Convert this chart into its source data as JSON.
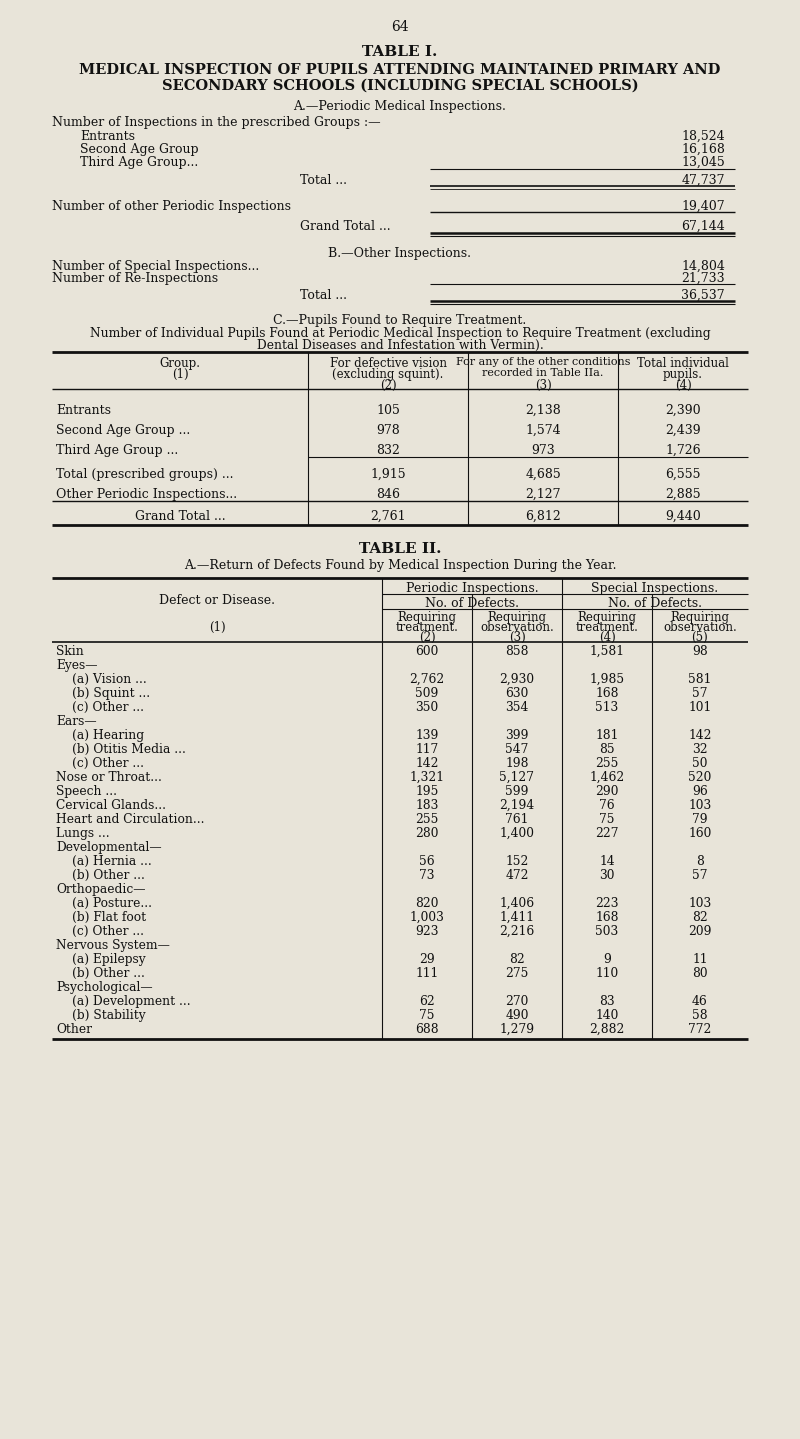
{
  "page_number": "64",
  "bg_color": "#e8e4d9",
  "text_color": "#1a1a1a",
  "table1_title": "TABLE I.",
  "table1_subtitle1": "MEDICAL INSPECTION OF PUPILS ATTENDING MAINTAINED PRIMARY AND",
  "table1_subtitle2": "SECONDARY SCHOOLS (INCLUDING SPECIAL SCHOOLS)",
  "section_A_header": "A.—Periodic Medical Inspections.",
  "section_A_text": "Number of Inspections in the prescribed Groups :—",
  "section_A_rows": [
    [
      "Entrants",
      "18,524"
    ],
    [
      "Second Age Group",
      "16,168"
    ],
    [
      "Third Age Group...",
      "13,045"
    ]
  ],
  "section_A_total": [
    "Total ...",
    "47,737"
  ],
  "section_A_other": [
    "Number of other Periodic Inspections",
    "19,407"
  ],
  "section_A_grand": [
    "Grand Total ...",
    "67,144"
  ],
  "section_B_header": "B.—Other Inspections.",
  "section_B_rows": [
    [
      "Number of Special Inspections...",
      "14,804"
    ],
    [
      "Number of Re-Inspections",
      "21,733"
    ]
  ],
  "section_B_total": [
    "Total ...",
    "36,537"
  ],
  "section_C_header": "C.—Pupils Found to Require Treatment.",
  "section_C_subheader1": "Number of Individual Pupils Found at Periodic Medical Inspection to Require Treatment (excluding",
  "section_C_subheader2": "Dental Diseases and Infestation with Vermin).",
  "table_c_rows": [
    [
      "Entrants",
      "105",
      "2,138",
      "2,390"
    ],
    [
      "Second Age Group ...",
      "978",
      "1,574",
      "2,439"
    ],
    [
      "Third Age Group ...",
      "832",
      "973",
      "1,726"
    ],
    [
      "Total (prescribed groups) ...",
      "1,915",
      "4,685",
      "6,555"
    ],
    [
      "Other Periodic Inspections...",
      "846",
      "2,127",
      "2,885"
    ],
    [
      "Grand Total ...",
      "2,761",
      "6,812",
      "9,440"
    ]
  ],
  "table2_title": "TABLE II.",
  "table2_subtitle": "A.—Return of Defects Found by Medical Inspection During the Year.",
  "table2_rows": [
    [
      "Skin",
      "600",
      "858",
      "1,581",
      "98"
    ],
    [
      "Eyes—",
      "",
      "",
      "",
      ""
    ],
    [
      "(a) Vision ...",
      "2,762",
      "2,930",
      "1,985",
      "581"
    ],
    [
      "(b) Squint ...",
      "509",
      "630",
      "168",
      "57"
    ],
    [
      "(c) Other ...",
      "350",
      "354",
      "513",
      "101"
    ],
    [
      "Ears—",
      "",
      "",
      "",
      ""
    ],
    [
      "(a) Hearing",
      "139",
      "399",
      "181",
      "142"
    ],
    [
      "(b) Otitis Media ...",
      "117",
      "547",
      "85",
      "32"
    ],
    [
      "(c) Other ...",
      "142",
      "198",
      "255",
      "50"
    ],
    [
      "Nose or Throat...",
      "1,321",
      "5,127",
      "1,462",
      "520"
    ],
    [
      "Speech ...",
      "195",
      "599",
      "290",
      "96"
    ],
    [
      "Cervical Glands...",
      "183",
      "2,194",
      "76",
      "103"
    ],
    [
      "Heart and Circulation...",
      "255",
      "761",
      "75",
      "79"
    ],
    [
      "Lungs ...",
      "280",
      "1,400",
      "227",
      "160"
    ],
    [
      "Developmental—",
      "",
      "",
      "",
      ""
    ],
    [
      "(a) Hernia ...",
      "56",
      "152",
      "14",
      "8"
    ],
    [
      "(b) Other ...",
      "73",
      "472",
      "30",
      "57"
    ],
    [
      "Orthopaedic—",
      "",
      "",
      "",
      ""
    ],
    [
      "(a) Posture...",
      "820",
      "1,406",
      "223",
      "103"
    ],
    [
      "(b) Flat foot",
      "1,003",
      "1,411",
      "168",
      "82"
    ],
    [
      "(c) Other ...",
      "923",
      "2,216",
      "503",
      "209"
    ],
    [
      "Nervous System—",
      "",
      "",
      "",
      ""
    ],
    [
      "(a) Epilepsy",
      "29",
      "82",
      "9",
      "11"
    ],
    [
      "(b) Other ...",
      "111",
      "275",
      "110",
      "80"
    ],
    [
      "Psychological—",
      "",
      "",
      "",
      ""
    ],
    [
      "(a) Development ...",
      "62",
      "270",
      "83",
      "46"
    ],
    [
      "(b) Stability",
      "75",
      "490",
      "140",
      "58"
    ],
    [
      "Other",
      "688",
      "1,279",
      "2,882",
      "772"
    ]
  ]
}
